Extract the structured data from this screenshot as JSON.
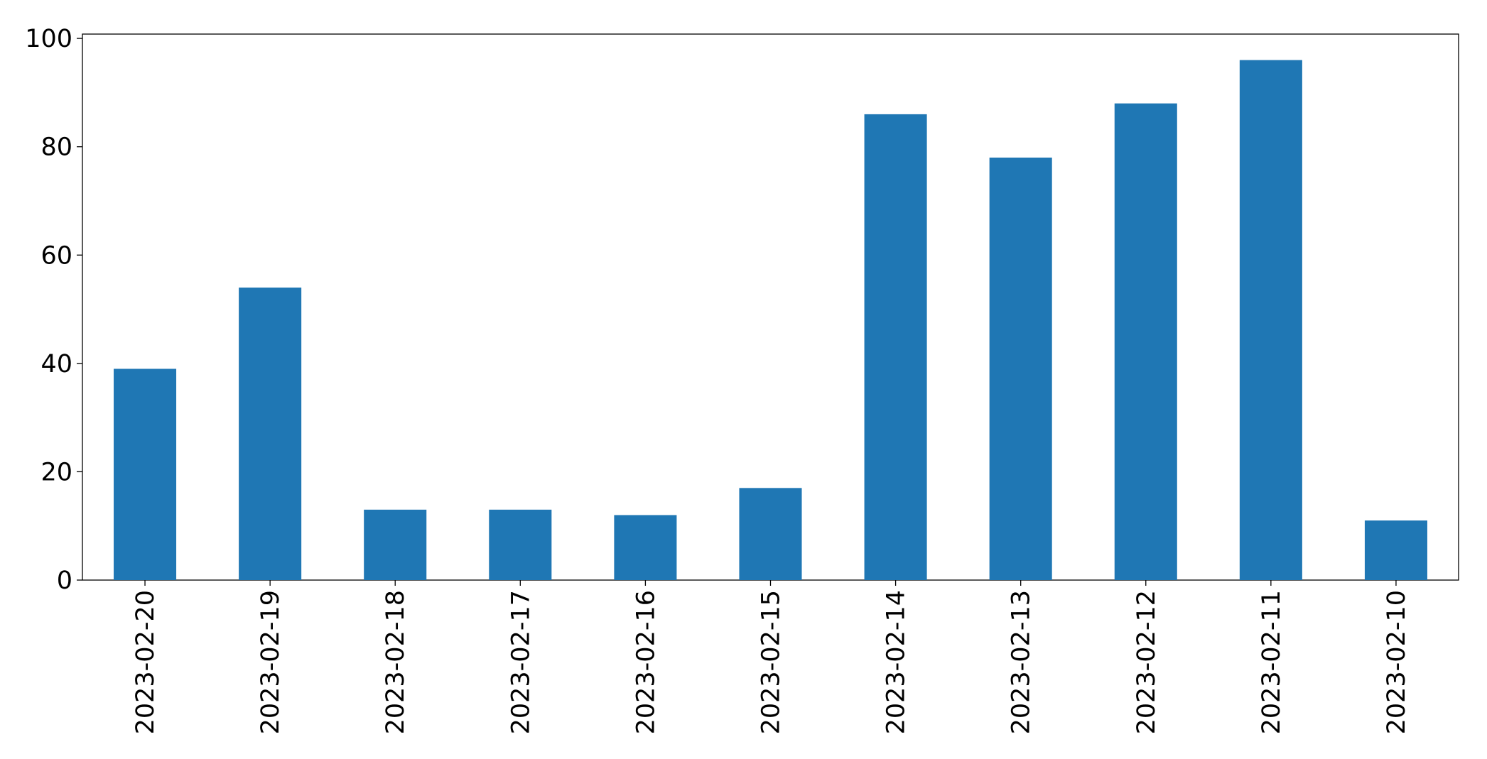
{
  "chart_data": {
    "type": "bar",
    "categories": [
      "2023-02-20",
      "2023-02-19",
      "2023-02-18",
      "2023-02-17",
      "2023-02-16",
      "2023-02-15",
      "2023-02-14",
      "2023-02-13",
      "2023-02-12",
      "2023-02-11",
      "2023-02-10"
    ],
    "values": [
      39,
      54,
      13,
      13,
      12,
      17,
      86,
      78,
      88,
      96,
      11
    ],
    "color": "#1f77b4",
    "ylim": [
      0,
      100.8
    ],
    "yticks": [
      0,
      20,
      40,
      60,
      80,
      100
    ],
    "grid": false
  }
}
